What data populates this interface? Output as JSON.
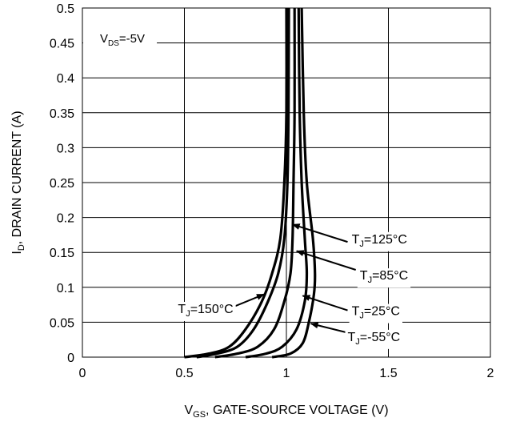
{
  "chart_data": {
    "type": "line",
    "xlabel": {
      "main": "V",
      "sub": "GS",
      "rest": ", GATE-SOURCE VOLTAGE (V)"
    },
    "ylabel": {
      "main": "I",
      "sub": "D",
      "rest": ", DRAIN CURRENT (A)"
    },
    "xlim": [
      0,
      2
    ],
    "ylim": [
      0,
      0.5
    ],
    "xticks": [
      "0",
      "0.5",
      "1",
      "1.5",
      "2"
    ],
    "yticks": [
      "0",
      "0.05",
      "0.1",
      "0.15",
      "0.2",
      "0.25",
      "0.3",
      "0.35",
      "0.4",
      "0.45",
      "0.5"
    ],
    "grid": true,
    "condition": {
      "main": "V",
      "sub": "DS",
      "rest": "=-5V"
    },
    "series": [
      {
        "name": "TJ=150°C",
        "points": [
          [
            0.5,
            0.0
          ],
          [
            0.62,
            0.005
          ],
          [
            0.72,
            0.015
          ],
          [
            0.8,
            0.04
          ],
          [
            0.88,
            0.08
          ],
          [
            0.93,
            0.12
          ],
          [
            0.97,
            0.17
          ],
          [
            0.99,
            0.25
          ],
          [
            1.0,
            0.35
          ],
          [
            1.0,
            0.5
          ]
        ]
      },
      {
        "name": "TJ=125°C",
        "points": [
          [
            0.56,
            0.0
          ],
          [
            0.66,
            0.005
          ],
          [
            0.76,
            0.015
          ],
          [
            0.84,
            0.04
          ],
          [
            0.91,
            0.08
          ],
          [
            0.96,
            0.12
          ],
          [
            0.99,
            0.17
          ],
          [
            1.005,
            0.25
          ],
          [
            1.01,
            0.35
          ],
          [
            1.012,
            0.5
          ]
        ]
      },
      {
        "name": "TJ=85°C",
        "points": [
          [
            0.65,
            0.0
          ],
          [
            0.76,
            0.005
          ],
          [
            0.86,
            0.015
          ],
          [
            0.94,
            0.04
          ],
          [
            0.99,
            0.08
          ],
          [
            1.02,
            0.12
          ],
          [
            1.03,
            0.17
          ],
          [
            1.035,
            0.25
          ],
          [
            1.04,
            0.35
          ],
          [
            1.04,
            0.5
          ]
        ]
      },
      {
        "name": "TJ=25°C",
        "points": [
          [
            0.8,
            0.0
          ],
          [
            0.9,
            0.005
          ],
          [
            0.98,
            0.015
          ],
          [
            1.05,
            0.04
          ],
          [
            1.09,
            0.08
          ],
          [
            1.1,
            0.12
          ],
          [
            1.09,
            0.17
          ],
          [
            1.075,
            0.25
          ],
          [
            1.065,
            0.35
          ],
          [
            1.06,
            0.5
          ]
        ]
      },
      {
        "name": "TJ=-55°C",
        "points": [
          [
            0.93,
            0.0
          ],
          [
            1.02,
            0.005
          ],
          [
            1.08,
            0.02
          ],
          [
            1.11,
            0.05
          ],
          [
            1.135,
            0.09
          ],
          [
            1.14,
            0.12
          ],
          [
            1.13,
            0.17
          ],
          [
            1.1,
            0.25
          ],
          [
            1.085,
            0.35
          ],
          [
            1.075,
            0.5
          ]
        ]
      }
    ],
    "annotations": [
      {
        "id": "t125",
        "main": "T",
        "sub": "J",
        "rest": "=125°C",
        "anchor": "start",
        "text_at": [
          1.32,
          0.17
        ],
        "arrow_from": [
          1.3,
          0.165
        ],
        "arrow_to": [
          1.03,
          0.19
        ]
      },
      {
        "id": "t85",
        "main": "T",
        "sub": "J",
        "rest": "=85°C",
        "anchor": "start",
        "text_at": [
          1.36,
          0.118
        ],
        "arrow_from": [
          1.34,
          0.125
        ],
        "arrow_to": [
          1.05,
          0.152
        ]
      },
      {
        "id": "t150",
        "main": "T",
        "sub": "J",
        "rest": "=150°C",
        "anchor": "end",
        "text_at": [
          0.74,
          0.07
        ],
        "arrow_from": [
          0.74,
          0.072
        ],
        "arrow_to": [
          0.89,
          0.09
        ]
      },
      {
        "id": "t25",
        "main": "T",
        "sub": "J",
        "rest": "=25°C",
        "anchor": "start",
        "text_at": [
          1.32,
          0.067
        ],
        "arrow_from": [
          1.3,
          0.067
        ],
        "arrow_to": [
          1.08,
          0.088
        ]
      },
      {
        "id": "tm55",
        "main": "T",
        "sub": "J",
        "rest": "=-55°C",
        "anchor": "start",
        "text_at": [
          1.3,
          0.03
        ],
        "arrow_from": [
          1.3,
          0.035
        ],
        "arrow_to": [
          1.12,
          0.048
        ]
      }
    ]
  }
}
